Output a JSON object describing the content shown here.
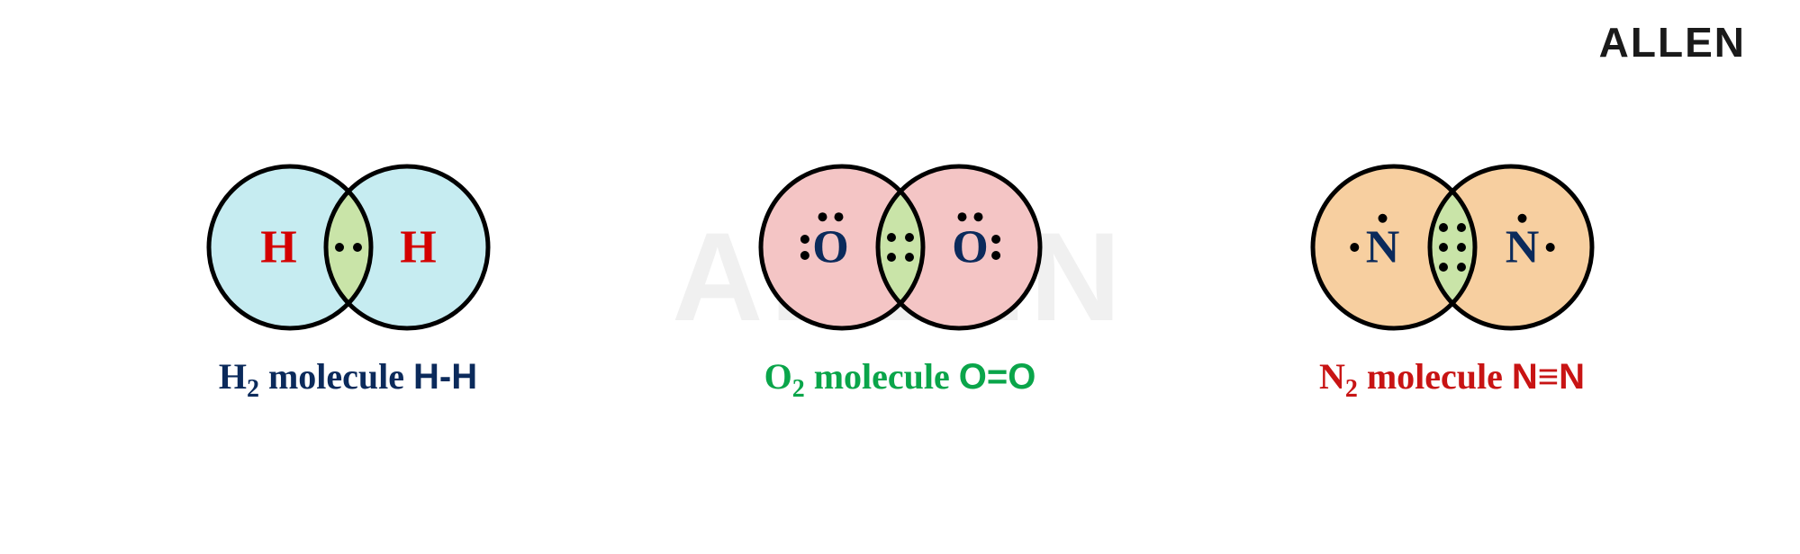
{
  "brand": {
    "text": "ALLEN",
    "fontsize": 46,
    "color": "#1a1a1a"
  },
  "watermark": {
    "text": "ALLEN",
    "fontsize": 140,
    "color": "#f0f0f0"
  },
  "geometry": {
    "circle_radius": 90,
    "circle_overlap": 50,
    "stroke_width": 5,
    "stroke_color": "#000000",
    "overlap_fill": "#c9e4a8",
    "electron_radius": 5,
    "electron_color": "#000000",
    "atom_label_fontsize": 52,
    "atom_label_weight": "bold"
  },
  "molecules": [
    {
      "id": "h2",
      "atom_label": "H",
      "atom_label_color": "#d40000",
      "circle_fill": "#c6ecf1",
      "bond_electrons": 2,
      "lone_pairs_per_atom": [],
      "caption": {
        "formula_base": "H",
        "formula_sub": "2",
        "mid": " molecule ",
        "bond_text": "H-H",
        "bond_glyph": "-",
        "color": "#0b2a5b",
        "fontsize": 40
      }
    },
    {
      "id": "o2",
      "atom_label": "O",
      "atom_label_color": "#0b2a5b",
      "circle_fill": "#f4c5c5",
      "bond_electrons": 4,
      "lone_pairs_per_atom": [
        "top",
        "outer"
      ],
      "caption": {
        "formula_base": "O",
        "formula_sub": "2",
        "mid": " molecule ",
        "bond_text": "O=O",
        "bond_glyph": "=",
        "color": "#0aa54a",
        "fontsize": 40
      }
    },
    {
      "id": "n2",
      "atom_label": "N",
      "atom_label_color": "#0b2a5b",
      "circle_fill": "#f7cfa0",
      "bond_electrons": 6,
      "lone_pairs_per_atom": [
        "top-single",
        "outer-single"
      ],
      "caption": {
        "formula_base": "N",
        "formula_sub": "2",
        "mid": " molecule ",
        "bond_text": "N≡N",
        "bond_glyph": "≡",
        "color": "#c81414",
        "fontsize": 40
      }
    }
  ]
}
